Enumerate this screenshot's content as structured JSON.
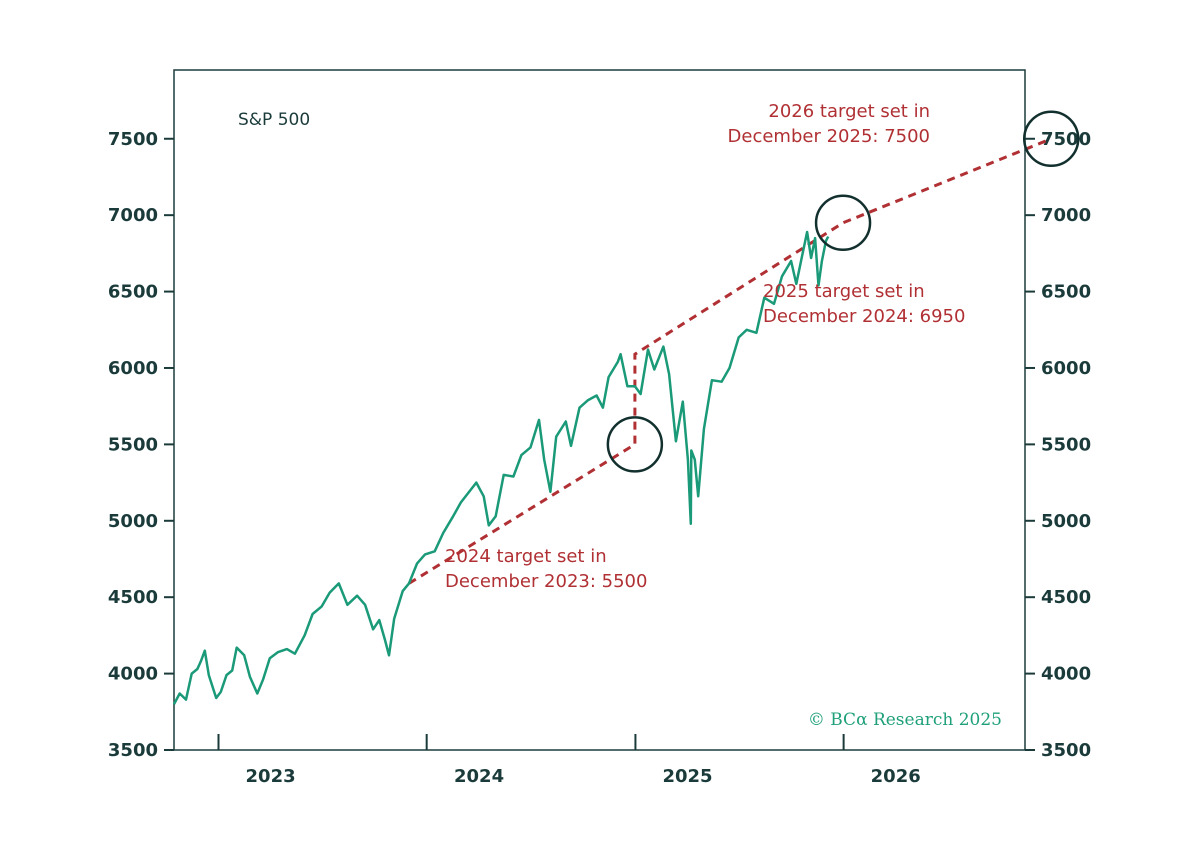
{
  "colors": {
    "price_line": "#1a9a78",
    "target_line": "#b03034",
    "circle": "#12302e",
    "axis": "#1b3b3b",
    "copyright": "#1fa07a"
  },
  "chart_data": {
    "type": "line",
    "series_label": "S&P 500",
    "y_ticks": [
      3500,
      4000,
      4500,
      5000,
      5500,
      6000,
      6500,
      7000,
      7500
    ],
    "ylim": [
      3500,
      7950
    ],
    "x_tick_labels": [
      "2023",
      "2024",
      "2025",
      "2026"
    ],
    "xlim": [
      "2022-10-15",
      "2026-11-15"
    ],
    "x_dividers": [
      "2023-01-01",
      "2024-01-01",
      "2025-01-01",
      "2026-01-01",
      "2027-01-01"
    ],
    "series": [
      {
        "name": "S&P 500",
        "points": [
          [
            "2022-10-15",
            3800
          ],
          [
            "2022-10-25",
            3870
          ],
          [
            "2022-11-05",
            3830
          ],
          [
            "2022-11-15",
            4000
          ],
          [
            "2022-11-25",
            4030
          ],
          [
            "2022-12-01",
            4080
          ],
          [
            "2022-12-08",
            4150
          ],
          [
            "2022-12-15",
            3990
          ],
          [
            "2022-12-28",
            3840
          ],
          [
            "2023-01-05",
            3880
          ],
          [
            "2023-01-15",
            3990
          ],
          [
            "2023-01-25",
            4020
          ],
          [
            "2023-02-02",
            4170
          ],
          [
            "2023-02-15",
            4120
          ],
          [
            "2023-02-25",
            3980
          ],
          [
            "2023-03-10",
            3870
          ],
          [
            "2023-03-20",
            3960
          ],
          [
            "2023-04-01",
            4100
          ],
          [
            "2023-04-15",
            4140
          ],
          [
            "2023-05-01",
            4160
          ],
          [
            "2023-05-15",
            4130
          ],
          [
            "2023-06-01",
            4250
          ],
          [
            "2023-06-15",
            4390
          ],
          [
            "2023-07-01",
            4440
          ],
          [
            "2023-07-15",
            4530
          ],
          [
            "2023-07-31",
            4590
          ],
          [
            "2023-08-15",
            4450
          ],
          [
            "2023-09-01",
            4510
          ],
          [
            "2023-09-15",
            4450
          ],
          [
            "2023-09-29",
            4290
          ],
          [
            "2023-10-10",
            4350
          ],
          [
            "2023-10-20",
            4220
          ],
          [
            "2023-10-27",
            4120
          ],
          [
            "2023-11-05",
            4360
          ],
          [
            "2023-11-20",
            4540
          ],
          [
            "2023-12-01",
            4590
          ],
          [
            "2023-12-15",
            4720
          ],
          [
            "2023-12-29",
            4780
          ],
          [
            "2024-01-15",
            4800
          ],
          [
            "2024-01-30",
            4920
          ],
          [
            "2024-02-15",
            5020
          ],
          [
            "2024-03-01",
            5120
          ],
          [
            "2024-03-28",
            5250
          ],
          [
            "2024-04-10",
            5160
          ],
          [
            "2024-04-19",
            4970
          ],
          [
            "2024-05-01",
            5030
          ],
          [
            "2024-05-15",
            5300
          ],
          [
            "2024-06-01",
            5290
          ],
          [
            "2024-06-15",
            5430
          ],
          [
            "2024-07-01",
            5480
          ],
          [
            "2024-07-16",
            5660
          ],
          [
            "2024-07-25",
            5400
          ],
          [
            "2024-08-05",
            5190
          ],
          [
            "2024-08-15",
            5550
          ],
          [
            "2024-09-01",
            5650
          ],
          [
            "2024-09-10",
            5490
          ],
          [
            "2024-09-25",
            5740
          ],
          [
            "2024-10-10",
            5790
          ],
          [
            "2024-10-25",
            5820
          ],
          [
            "2024-11-05",
            5740
          ],
          [
            "2024-11-15",
            5940
          ],
          [
            "2024-12-01",
            6040
          ],
          [
            "2024-12-06",
            6090
          ],
          [
            "2024-12-18",
            5880
          ],
          [
            "2024-12-31",
            5880
          ],
          [
            "2025-01-10",
            5830
          ],
          [
            "2025-01-23",
            6120
          ],
          [
            "2025-02-03",
            5990
          ],
          [
            "2025-02-19",
            6140
          ],
          [
            "2025-03-01",
            5960
          ],
          [
            "2025-03-13",
            5520
          ],
          [
            "2025-03-25",
            5780
          ],
          [
            "2025-04-03",
            5400
          ],
          [
            "2025-04-08",
            4980
          ],
          [
            "2025-04-09",
            5460
          ],
          [
            "2025-04-15",
            5400
          ],
          [
            "2025-04-21",
            5160
          ],
          [
            "2025-05-01",
            5600
          ],
          [
            "2025-05-15",
            5920
          ],
          [
            "2025-06-01",
            5910
          ],
          [
            "2025-06-15",
            6000
          ],
          [
            "2025-07-01",
            6200
          ],
          [
            "2025-07-15",
            6250
          ],
          [
            "2025-08-01",
            6230
          ],
          [
            "2025-08-15",
            6460
          ],
          [
            "2025-09-01",
            6420
          ],
          [
            "2025-09-15",
            6600
          ],
          [
            "2025-10-01",
            6700
          ],
          [
            "2025-10-10",
            6550
          ],
          [
            "2025-10-20",
            6730
          ],
          [
            "2025-10-29",
            6890
          ],
          [
            "2025-11-05",
            6720
          ],
          [
            "2025-11-12",
            6850
          ],
          [
            "2025-11-18",
            6540
          ],
          [
            "2025-11-24",
            6700
          ],
          [
            "2025-12-01",
            6830
          ],
          [
            "2025-12-05",
            6860
          ]
        ]
      }
    ],
    "target_line": {
      "points": [
        [
          "2023-12-01",
          4590
        ],
        [
          "2024-12-31",
          5500
        ],
        [
          "2024-12-31",
          6090
        ],
        [
          "2025-12-31",
          6950
        ],
        [
          "2026-12-31",
          7500
        ]
      ]
    },
    "targets": [
      {
        "date": "2024-12-31",
        "value": 5500,
        "label_lines": [
          "2024 target set in",
          "December 2023: 5500"
        ]
      },
      {
        "date": "2025-12-31",
        "value": 6950,
        "label_lines": [
          "2025 target set in",
          "December 2024: 6950"
        ]
      },
      {
        "date": "2026-12-31",
        "value": 7500,
        "label_lines": [
          "2026 target set in",
          "December 2025: 7500"
        ]
      }
    ]
  },
  "copyright": "© BCα Research 2025"
}
